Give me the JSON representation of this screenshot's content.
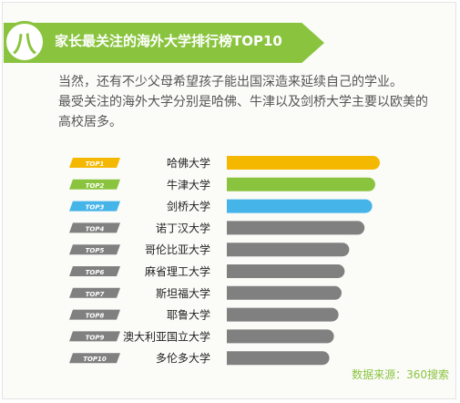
{
  "header": {
    "number": "八",
    "title": "家长最关注的海外大学排行榜TOP10"
  },
  "intro": [
    "当然，还有不少父母希望孩子能出国深造来延续自己的学业。",
    "最受关注的海外大学分别是哈佛、牛津以及剑桥大学主要以欧美的",
    "高校居多。"
  ],
  "colors": {
    "accent": "#8ac43f",
    "top1": "#f5b800",
    "top2": "#8ac43f",
    "top3": "#45b4e8",
    "rest": "#808080"
  },
  "chart_data": {
    "type": "bar",
    "orientation": "horizontal",
    "ranks": [
      "TOP1",
      "TOP2",
      "TOP3",
      "TOP4",
      "TOP5",
      "TOP6",
      "TOP7",
      "TOP8",
      "TOP9",
      "TOP10"
    ],
    "categories": [
      "哈佛大学",
      "牛津大学",
      "剑桥大学",
      "诺丁汉大学",
      "哥伦比亚大学",
      "麻省理工大学",
      "斯坦福大学",
      "耶鲁大学",
      "澳大利亚国立大学",
      "多伦多大学"
    ],
    "values": [
      100,
      97,
      95,
      90,
      80,
      77,
      75,
      73,
      70,
      67
    ],
    "xlabel": "",
    "ylabel": "",
    "grid": false,
    "legend": "none"
  },
  "source": "数据来源：360搜索"
}
